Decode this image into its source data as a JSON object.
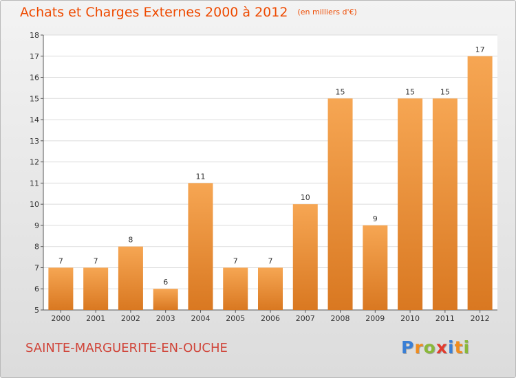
{
  "header": {
    "title": "Achats et Charges Externes 2000 à 2012",
    "unit": "(en milliers d'€)"
  },
  "footer": {
    "city": "SAINTE-MARGUERITE-EN-OUCHE",
    "logo": [
      "P",
      "r",
      "o",
      "x",
      "i",
      "t",
      "i"
    ],
    "logo_colors": [
      "#3a7fd5",
      "#f08c1e",
      "#8ab83a",
      "#e23b2e",
      "#3a7fd5",
      "#f08c1e",
      "#8ab83a"
    ]
  },
  "colors": {
    "bar_top": "#f6a653",
    "bar_bottom": "#d97821",
    "title": "#ee4a00",
    "city": "#d0453a"
  },
  "chart_data": {
    "type": "bar",
    "categories": [
      "2000",
      "2001",
      "2002",
      "2003",
      "2004",
      "2005",
      "2006",
      "2007",
      "2008",
      "2009",
      "2010",
      "2011",
      "2012"
    ],
    "values": [
      7,
      7,
      8,
      6,
      11,
      7,
      7,
      10,
      15,
      9,
      15,
      15,
      17
    ],
    "title": "Achats et Charges Externes 2000 à 2012",
    "ylim": [
      5,
      18
    ],
    "yticks": [
      5,
      6,
      7,
      8,
      9,
      10,
      11,
      12,
      13,
      14,
      15,
      16,
      17,
      18
    ],
    "grid": true
  }
}
